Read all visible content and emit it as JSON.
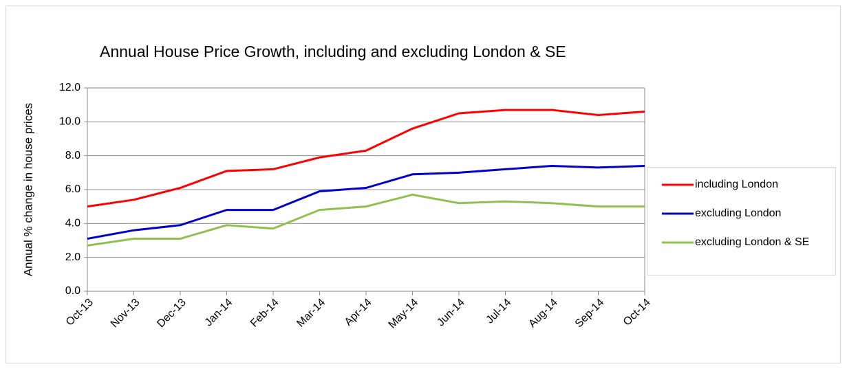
{
  "chart_data": {
    "type": "line",
    "title": "Annual House Price Growth, including and excluding London & SE",
    "y_label": "Annual % change in house prices",
    "categories": [
      "Oct-13",
      "Nov-13",
      "Dec-13",
      "Jan-14",
      "Feb-14",
      "Mar-14",
      "Apr-14",
      "May-14",
      "Jun-14",
      "Jul-14",
      "Aug-14",
      "Sep-14",
      "Oct-14"
    ],
    "series": [
      {
        "name": "including London",
        "color": "#ff0000",
        "values": [
          5.0,
          5.4,
          6.1,
          7.1,
          7.2,
          7.9,
          8.3,
          9.6,
          10.5,
          10.7,
          10.7,
          10.4,
          10.6
        ]
      },
      {
        "name": "excluding London",
        "color": "#0000cc",
        "values": [
          3.1,
          3.6,
          3.9,
          4.8,
          4.8,
          5.9,
          6.1,
          6.9,
          7.0,
          7.2,
          7.4,
          7.3,
          7.4
        ]
      },
      {
        "name": "excluding London & SE",
        "color": "#92c050",
        "values": [
          2.7,
          3.1,
          3.1,
          3.9,
          3.7,
          4.8,
          5.0,
          5.7,
          5.2,
          5.3,
          5.2,
          5.0,
          5.0
        ]
      }
    ],
    "ylim": [
      0,
      12
    ],
    "yticks": [
      {
        "value": 0,
        "label": "0.0"
      },
      {
        "value": 2,
        "label": "2.0"
      },
      {
        "value": 4,
        "label": "4.0"
      },
      {
        "value": 6,
        "label": "6.0"
      },
      {
        "value": 8,
        "label": "8.0"
      },
      {
        "value": 10,
        "label": "10.0"
      },
      {
        "value": 12,
        "label": "12.0"
      }
    ],
    "grid": true,
    "legend": "right"
  }
}
